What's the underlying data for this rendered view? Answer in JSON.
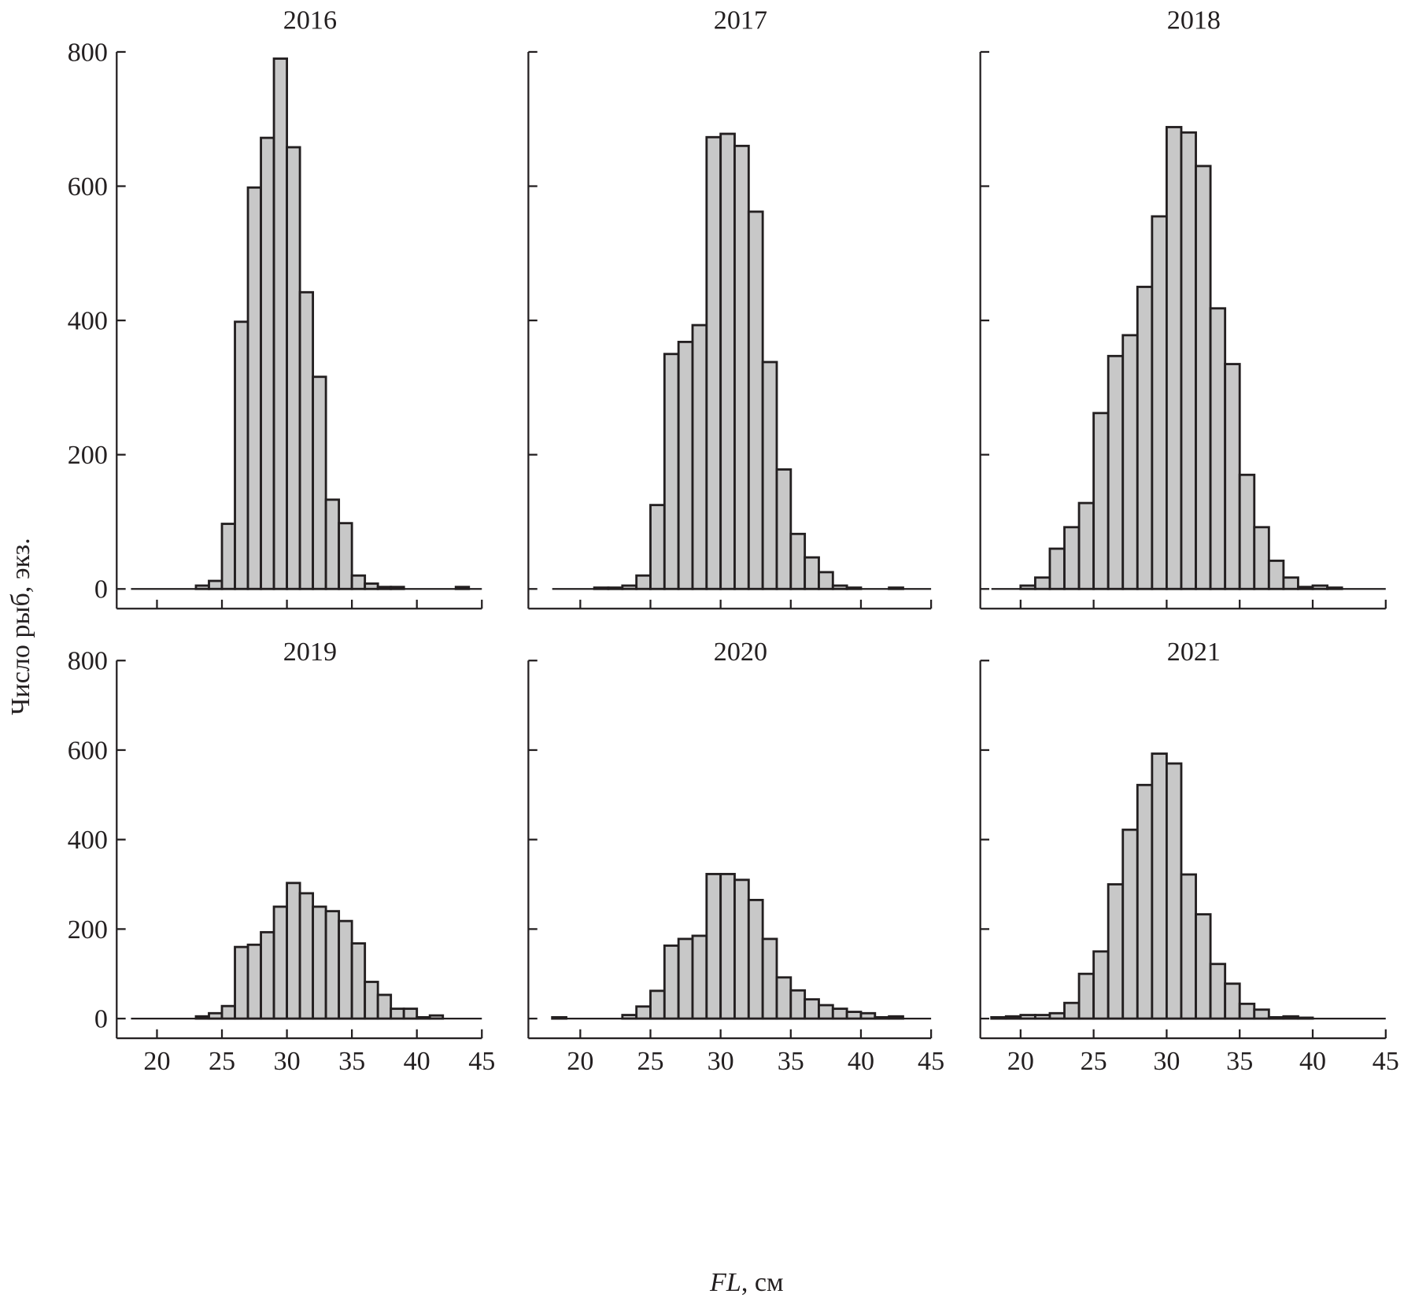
{
  "chart_data": {
    "type": "bar",
    "ylabel": "Число рыб, экз.",
    "xlabel_italic": "FL",
    "xlabel_rest": ", см",
    "xlim": [
      17,
      45
    ],
    "ylim": [
      0,
      800
    ],
    "xticks": [
      20,
      25,
      30,
      35,
      40,
      45
    ],
    "yticks": [
      0,
      200,
      400,
      600,
      800
    ],
    "bin_width": 1,
    "bar_color": "#c8c8c8",
    "edge_color": "#231f20",
    "panels": [
      {
        "title": "2016",
        "bins": {
          "23": 5,
          "24": 12,
          "25": 97,
          "26": 398,
          "27": 598,
          "28": 672,
          "29": 790,
          "30": 658,
          "31": 442,
          "32": 316,
          "33": 133,
          "34": 98,
          "35": 20,
          "36": 8,
          "37": 3,
          "38": 3,
          "43": 3
        }
      },
      {
        "title": "2017",
        "bins": {
          "21": 2,
          "22": 2,
          "23": 5,
          "24": 20,
          "25": 125,
          "26": 350,
          "27": 368,
          "28": 393,
          "29": 673,
          "30": 678,
          "31": 660,
          "32": 562,
          "33": 338,
          "34": 178,
          "35": 82,
          "36": 47,
          "37": 25,
          "38": 5,
          "39": 2,
          "42": 2
        }
      },
      {
        "title": "2018",
        "bins": {
          "20": 5,
          "21": 17,
          "22": 60,
          "23": 92,
          "24": 128,
          "25": 262,
          "26": 347,
          "27": 378,
          "28": 450,
          "29": 555,
          "30": 688,
          "31": 680,
          "32": 630,
          "33": 418,
          "34": 335,
          "35": 170,
          "36": 92,
          "37": 42,
          "38": 17,
          "39": 3,
          "40": 5,
          "41": 2
        }
      },
      {
        "title": "2019",
        "bins": {
          "23": 5,
          "24": 12,
          "25": 28,
          "26": 160,
          "27": 165,
          "28": 193,
          "29": 250,
          "30": 303,
          "31": 280,
          "32": 250,
          "33": 240,
          "34": 218,
          "35": 168,
          "36": 82,
          "37": 53,
          "38": 22,
          "39": 22,
          "40": 3,
          "41": 7
        }
      },
      {
        "title": "2020",
        "bins": {
          "18": 3,
          "23": 8,
          "24": 27,
          "25": 62,
          "26": 163,
          "27": 178,
          "28": 185,
          "29": 323,
          "30": 323,
          "31": 310,
          "32": 265,
          "33": 178,
          "34": 92,
          "35": 63,
          "36": 43,
          "37": 30,
          "38": 22,
          "39": 15,
          "40": 12,
          "41": 3,
          "42": 5
        }
      },
      {
        "title": "2021",
        "bins": {
          "18": 3,
          "19": 5,
          "20": 8,
          "21": 8,
          "22": 12,
          "23": 35,
          "24": 100,
          "25": 150,
          "26": 300,
          "27": 422,
          "28": 522,
          "29": 592,
          "30": 570,
          "31": 322,
          "32": 233,
          "33": 122,
          "34": 78,
          "35": 33,
          "36": 20,
          "37": 3,
          "38": 5,
          "39": 2
        }
      }
    ]
  }
}
